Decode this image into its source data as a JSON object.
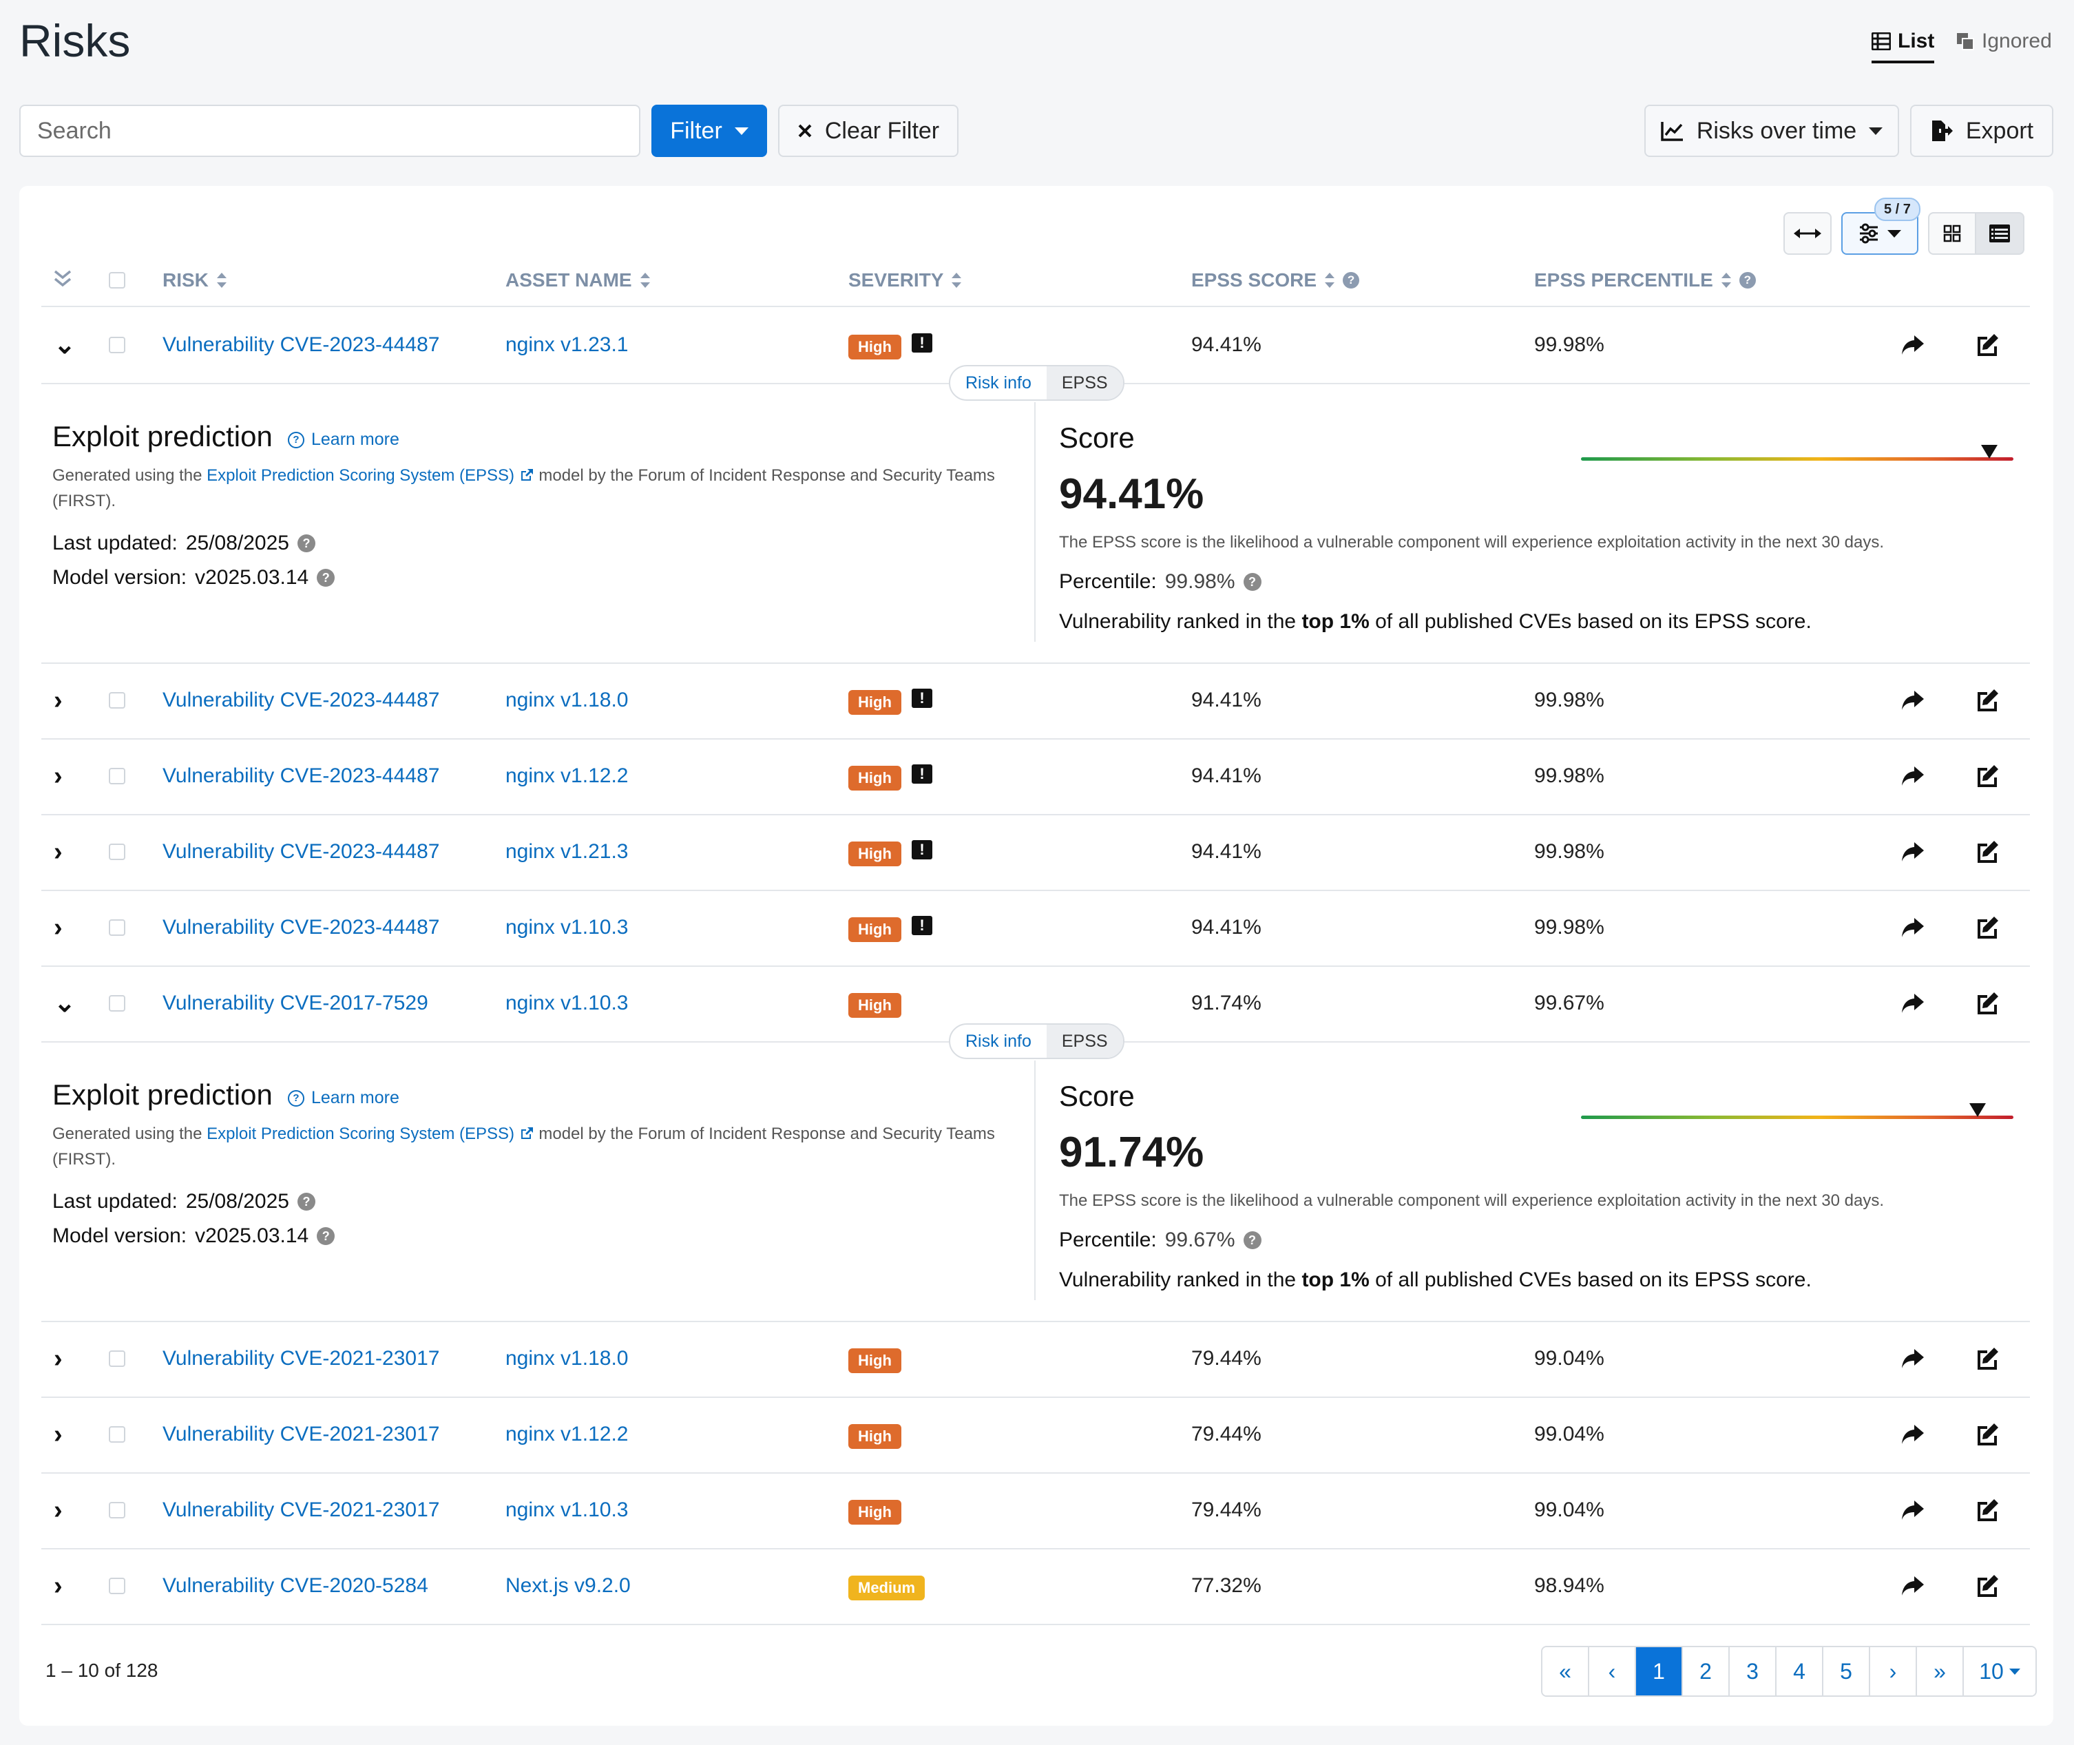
{
  "title": "Risks",
  "view_tabs": {
    "list": "List",
    "ignored": "Ignored"
  },
  "search": {
    "placeholder": "Search",
    "value": ""
  },
  "toolbar": {
    "filter_label": "Filter",
    "clear_filter_label": "Clear Filter",
    "risks_over_time_label": "Risks over time",
    "export_label": "Export"
  },
  "column_badge": "5 / 7",
  "columns": {
    "risk": "RISK",
    "asset_name": "ASSET NAME",
    "severity": "SEVERITY",
    "epss_score": "EPSS SCORE",
    "epss_percentile": "EPSS PERCENTILE"
  },
  "rows": [
    {
      "risk": "Vulnerability CVE-2023-44487",
      "asset": "nginx v1.23.1",
      "severity": "High",
      "epss_score": "94.41%",
      "epss_percentile": "99.98%",
      "expanded": true,
      "has_note": true
    },
    {
      "risk": "Vulnerability CVE-2023-44487",
      "asset": "nginx v1.18.0",
      "severity": "High",
      "epss_score": "94.41%",
      "epss_percentile": "99.98%",
      "expanded": false,
      "has_note": true
    },
    {
      "risk": "Vulnerability CVE-2023-44487",
      "asset": "nginx v1.12.2",
      "severity": "High",
      "epss_score": "94.41%",
      "epss_percentile": "99.98%",
      "expanded": false,
      "has_note": true
    },
    {
      "risk": "Vulnerability CVE-2023-44487",
      "asset": "nginx v1.21.3",
      "severity": "High",
      "epss_score": "94.41%",
      "epss_percentile": "99.98%",
      "expanded": false,
      "has_note": true
    },
    {
      "risk": "Vulnerability CVE-2023-44487",
      "asset": "nginx v1.10.3",
      "severity": "High",
      "epss_score": "94.41%",
      "epss_percentile": "99.98%",
      "expanded": false,
      "has_note": true
    },
    {
      "risk": "Vulnerability CVE-2017-7529",
      "asset": "nginx v1.10.3",
      "severity": "High",
      "epss_score": "91.74%",
      "epss_percentile": "99.67%",
      "expanded": true,
      "has_note": false
    },
    {
      "risk": "Vulnerability CVE-2021-23017",
      "asset": "nginx v1.18.0",
      "severity": "High",
      "epss_score": "79.44%",
      "epss_percentile": "99.04%",
      "expanded": false,
      "has_note": false
    },
    {
      "risk": "Vulnerability CVE-2021-23017",
      "asset": "nginx v1.12.2",
      "severity": "High",
      "epss_score": "79.44%",
      "epss_percentile": "99.04%",
      "expanded": false,
      "has_note": false
    },
    {
      "risk": "Vulnerability CVE-2021-23017",
      "asset": "nginx v1.10.3",
      "severity": "High",
      "epss_score": "79.44%",
      "epss_percentile": "99.04%",
      "expanded": false,
      "has_note": false
    },
    {
      "risk": "Vulnerability CVE-2020-5284",
      "asset": "Next.js v9.2.0",
      "severity": "Medium",
      "epss_score": "77.32%",
      "epss_percentile": "98.94%",
      "expanded": false,
      "has_note": false
    }
  ],
  "detail_tabs": {
    "risk_info": "Risk info",
    "epss": "EPSS"
  },
  "details": [
    {
      "exploit_title": "Exploit prediction",
      "learn_more": "Learn more",
      "generated_prefix": "Generated using the",
      "generated_link": "Exploit Prediction Scoring System (EPSS)",
      "generated_suffix": "model by the Forum of Incident Response and Security Teams (FIRST).",
      "last_updated_label": "Last updated:",
      "last_updated": "25/08/2025",
      "model_version_label": "Model version:",
      "model_version": "v2025.03.14",
      "score_label": "Score",
      "score": "94.41%",
      "score_fraction": 0.9441,
      "score_desc": "The EPSS score is the likelihood a vulnerable component will experience exploitation activity in the next 30 days.",
      "percentile_label": "Percentile:",
      "percentile": "99.98%",
      "rank_prefix": "Vulnerability ranked in the",
      "rank_bold": "top 1%",
      "rank_suffix": "of all published CVEs based on its EPSS score."
    },
    {
      "exploit_title": "Exploit prediction",
      "learn_more": "Learn more",
      "generated_prefix": "Generated using the",
      "generated_link": "Exploit Prediction Scoring System (EPSS)",
      "generated_suffix": "model by the Forum of Incident Response and Security Teams (FIRST).",
      "last_updated_label": "Last updated:",
      "last_updated": "25/08/2025",
      "model_version_label": "Model version:",
      "model_version": "v2025.03.14",
      "score_label": "Score",
      "score": "91.74%",
      "score_fraction": 0.9174,
      "score_desc": "The EPSS score is the likelihood a vulnerable component will experience exploitation activity in the next 30 days.",
      "percentile_label": "Percentile:",
      "percentile": "99.67%",
      "rank_prefix": "Vulnerability ranked in the",
      "rank_bold": "top 1%",
      "rank_suffix": "of all published CVEs based on its EPSS score."
    }
  ],
  "pagination": {
    "summary": "1 – 10 of 128",
    "first": "«",
    "prev": "‹",
    "pages": [
      "1",
      "2",
      "3",
      "4",
      "5"
    ],
    "current": "1",
    "next": "›",
    "last": "»",
    "page_size": "10"
  },
  "colors": {
    "accent": "#0a73d9",
    "link": "#0b6dbf",
    "high": "#de6b2c",
    "medium": "#f0b41e"
  },
  "icons": {
    "collapse_all": "double-chevron-down-icon",
    "share": "share-arrow-icon",
    "edit": "edit-icon",
    "note": "comment-exclamation-icon",
    "list": "list-icon",
    "ignored": "layers-icon",
    "chart": "chart-line-icon",
    "export": "file-export-icon",
    "expand": "arrows-horizontal-icon",
    "settings": "sliders-icon",
    "grid": "grid-icon",
    "table": "table-icon"
  }
}
